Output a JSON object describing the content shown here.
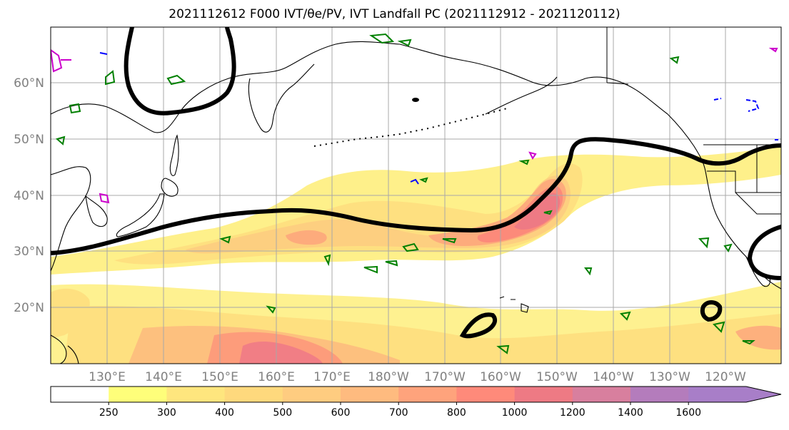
{
  "title": "2021112612 F000 IVT/θe/PV, IVT Landfall PC (2021112912 - 2021120112)",
  "axes": {
    "lat_labels": [
      "60°N",
      "50°N",
      "40°N",
      "30°N",
      "20°N"
    ],
    "lon_labels": [
      "130°E",
      "140°E",
      "150°E",
      "160°E",
      "170°E",
      "180°W",
      "170°W",
      "160°W",
      "150°W",
      "140°W",
      "130°W",
      "120°W"
    ]
  },
  "colorbar": {
    "ticks": [
      "250",
      "300",
      "400",
      "500",
      "600",
      "700",
      "800",
      "1000",
      "1200",
      "1400",
      "1600"
    ],
    "colors": [
      "#ffffff",
      "#fefe7a",
      "#fee67e",
      "#fed97d",
      "#fecc80",
      "#febb7f",
      "#fea37c",
      "#fe8a7a",
      "#ee7a84",
      "#d87f9e",
      "#b47cbc",
      "#a87ec8"
    ]
  },
  "colors": {
    "theta_e_contour": "#008000",
    "pv_contour_magenta": "#cc00cc",
    "pv_contour_blue": "#0000ff",
    "landfall_contour": "#000000"
  }
}
